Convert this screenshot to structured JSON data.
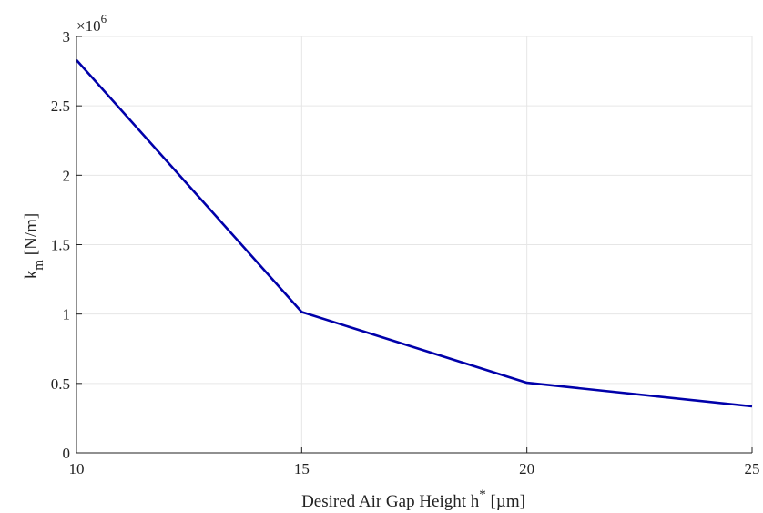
{
  "chart_data": {
    "type": "line",
    "x": [
      10,
      15,
      20,
      25
    ],
    "series": [
      {
        "values": [
          2.83,
          1.015,
          0.505,
          0.335
        ],
        "color": "#0000aa"
      }
    ],
    "xlabel": {
      "main": "Desired Air Gap Height h",
      "sup": "*",
      "unit": " [µm]"
    },
    "ylabel": {
      "main": "k",
      "sub": "m",
      "unit": "  [N/m]"
    },
    "y_exponent": {
      "base": "×10",
      "power": "6"
    },
    "xlim": [
      10,
      25
    ],
    "ylim": [
      0,
      3
    ],
    "xticks": [
      10,
      15,
      20,
      25
    ],
    "yticks": [
      0,
      0.5,
      1,
      1.5,
      2,
      2.5,
      3
    ],
    "xtick_labels": [
      "10",
      "15",
      "20",
      "25"
    ],
    "ytick_labels": [
      "0",
      "0.5",
      "1",
      "1.5",
      "2",
      "2.5",
      "3"
    ],
    "grid": true,
    "colors": {
      "axis": "#222222",
      "grid": "#e6e6e6"
    }
  }
}
